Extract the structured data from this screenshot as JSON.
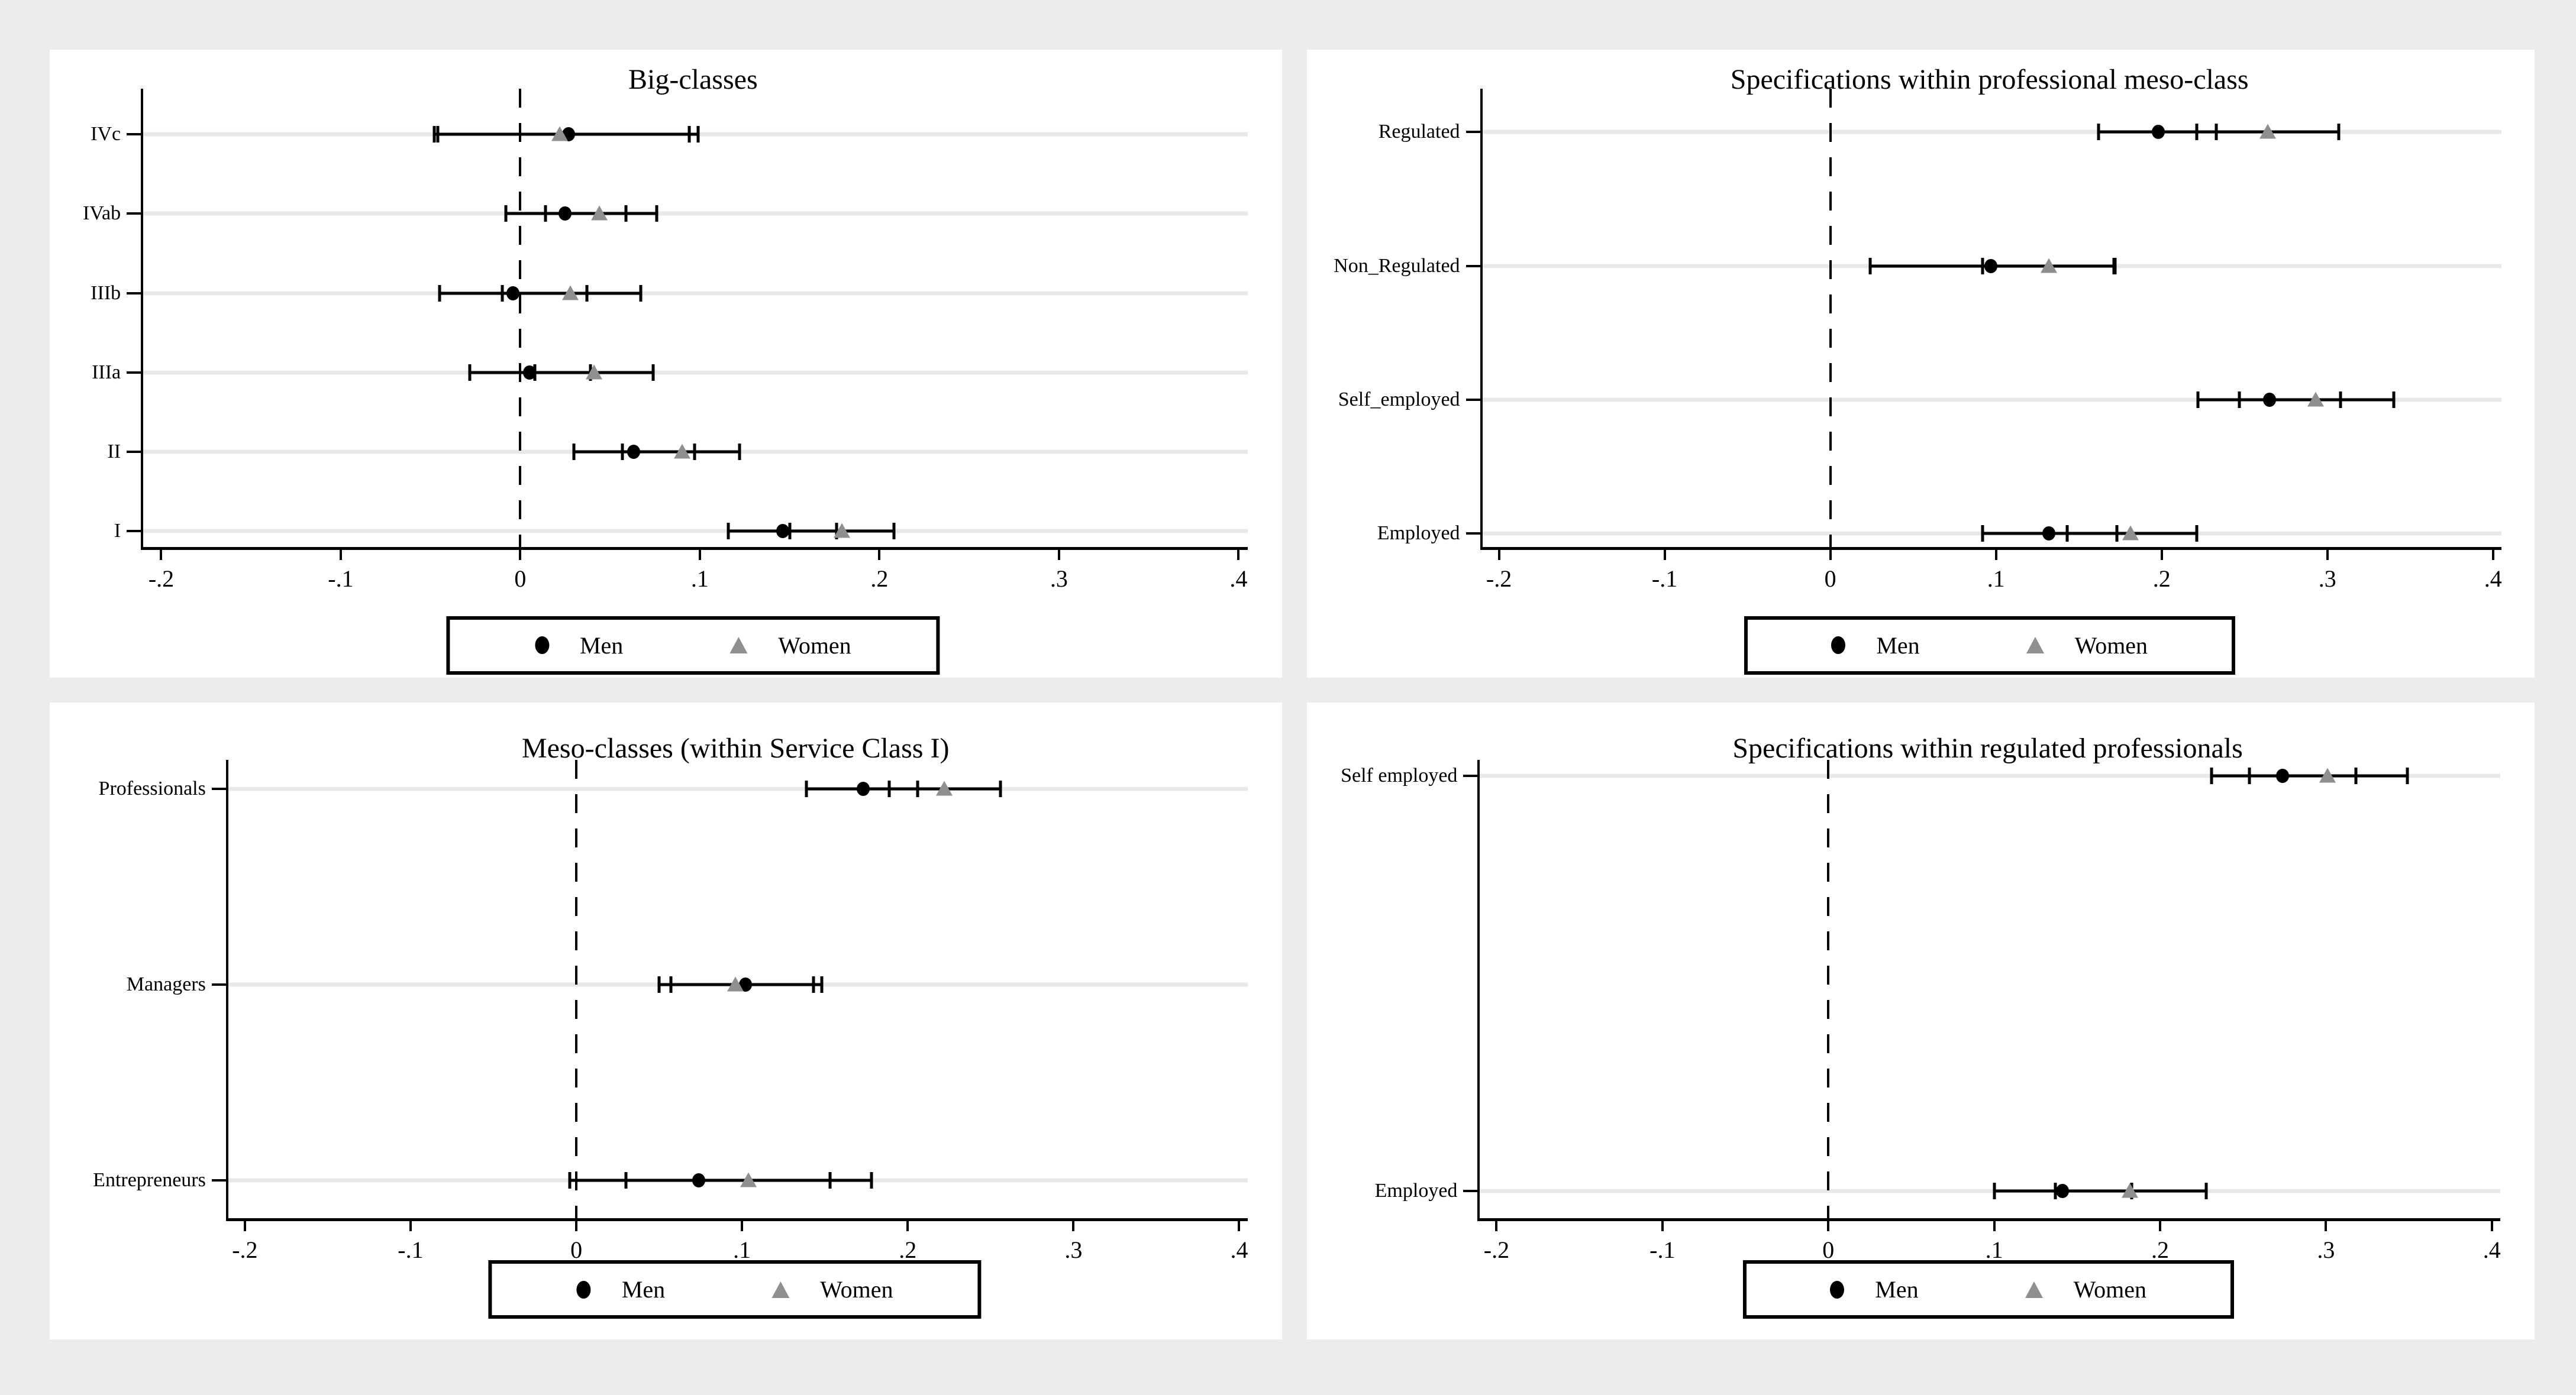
{
  "page": {
    "background": "#ececec",
    "panel_background": "#ffffff"
  },
  "colors": {
    "men": "#000000",
    "women": "#8f8f8f",
    "axis": "#000000",
    "grid": "#e8e8e8"
  },
  "legend": {
    "men": "Men",
    "women": "Women"
  },
  "chart_data": [
    {
      "type": "scatter",
      "subtype": "dot-whisker-coefficient-plot",
      "title": "Big-classes",
      "xlabel": "",
      "ylabel": "",
      "xlim": [
        -0.21,
        0.405
      ],
      "xticks": [
        -0.2,
        -0.1,
        0,
        0.1,
        0.2,
        0.3,
        0.4
      ],
      "xtick_labels": [
        "-.2",
        "-.1",
        "0",
        ".1",
        ".2",
        ".3",
        ".4"
      ],
      "zero_line": 0,
      "grid": true,
      "legend_position": "bottom-center",
      "layout": {
        "gutter": 0.074,
        "row_margin_top": 0.1,
        "row_margin_bottom": 0.035
      },
      "categories": [
        "IVc",
        "IVab",
        "IIIb",
        "IIIa",
        "II",
        "I"
      ],
      "series": [
        {
          "name": "Men",
          "marker": "circle",
          "color": "#000000",
          "points": [
            {
              "est": 0.027,
              "lo": -0.046,
              "hi": 0.099
            },
            {
              "est": 0.025,
              "lo": -0.008,
              "hi": 0.059
            },
            {
              "est": -0.004,
              "lo": -0.045,
              "hi": 0.037
            },
            {
              "est": 0.005,
              "lo": -0.028,
              "hi": 0.039
            },
            {
              "est": 0.063,
              "lo": 0.03,
              "hi": 0.097
            },
            {
              "est": 0.146,
              "lo": 0.116,
              "hi": 0.176
            }
          ]
        },
        {
          "name": "Women",
          "marker": "triangle",
          "color": "#8f8f8f",
          "points": [
            {
              "est": 0.022,
              "lo": -0.048,
              "hi": 0.094
            },
            {
              "est": 0.044,
              "lo": 0.014,
              "hi": 0.076
            },
            {
              "est": 0.028,
              "lo": -0.01,
              "hi": 0.067
            },
            {
              "est": 0.041,
              "lo": 0.008,
              "hi": 0.074
            },
            {
              "est": 0.09,
              "lo": 0.057,
              "hi": 0.122
            },
            {
              "est": 0.179,
              "lo": 0.15,
              "hi": 0.208
            }
          ]
        }
      ]
    },
    {
      "type": "scatter",
      "subtype": "dot-whisker-coefficient-plot",
      "title": "Specifications within professional meso-class",
      "xlabel": "",
      "ylabel": "",
      "xlim": [
        -0.21,
        0.405
      ],
      "xticks": [
        -0.2,
        -0.1,
        0,
        0.1,
        0.2,
        0.3,
        0.4
      ],
      "xtick_labels": [
        "-.2",
        "-.1",
        "0",
        ".1",
        ".2",
        ".3",
        ".4"
      ],
      "zero_line": 0,
      "grid": true,
      "legend_position": "bottom-center",
      "layout": {
        "gutter": 0.141,
        "row_margin_top": 0.095,
        "row_margin_bottom": 0.03
      },
      "categories": [
        "Regulated",
        "Non_Regulated",
        "Self_employed",
        "Employed"
      ],
      "series": [
        {
          "name": "Men",
          "marker": "circle",
          "color": "#000000",
          "points": [
            {
              "est": 0.198,
              "lo": 0.162,
              "hi": 0.233
            },
            {
              "est": 0.097,
              "lo": 0.024,
              "hi": 0.171
            },
            {
              "est": 0.265,
              "lo": 0.222,
              "hi": 0.308
            },
            {
              "est": 0.132,
              "lo": 0.092,
              "hi": 0.173
            }
          ]
        },
        {
          "name": "Women",
          "marker": "triangle",
          "color": "#8f8f8f",
          "points": [
            {
              "est": 0.264,
              "lo": 0.221,
              "hi": 0.307
            },
            {
              "est": 0.132,
              "lo": 0.092,
              "hi": 0.172
            },
            {
              "est": 0.293,
              "lo": 0.247,
              "hi": 0.34
            },
            {
              "est": 0.181,
              "lo": 0.143,
              "hi": 0.221
            }
          ]
        }
      ]
    },
    {
      "type": "scatter",
      "subtype": "dot-whisker-coefficient-plot",
      "title": "Meso-classes (within Service Class I)",
      "xlabel": "",
      "ylabel": "",
      "xlim": [
        -0.21,
        0.405
      ],
      "xticks": [
        -0.2,
        -0.1,
        0,
        0.1,
        0.2,
        0.3,
        0.4
      ],
      "xtick_labels": [
        "-.2",
        "-.1",
        "0",
        ".1",
        ".2",
        ".3",
        ".4"
      ],
      "zero_line": 0,
      "grid": true,
      "legend_position": "bottom-center",
      "layout": {
        "gutter": 0.143,
        "row_margin_top": 0.063,
        "row_margin_bottom": 0.083
      },
      "categories": [
        "Professionals",
        "Managers",
        "Entrepreneurs"
      ],
      "series": [
        {
          "name": "Men",
          "marker": "circle",
          "color": "#000000",
          "points": [
            {
              "est": 0.173,
              "lo": 0.139,
              "hi": 0.206
            },
            {
              "est": 0.102,
              "lo": 0.057,
              "hi": 0.148
            },
            {
              "est": 0.074,
              "lo": -0.004,
              "hi": 0.153
            }
          ]
        },
        {
          "name": "Women",
          "marker": "triangle",
          "color": "#8f8f8f",
          "points": [
            {
              "est": 0.222,
              "lo": 0.189,
              "hi": 0.256
            },
            {
              "est": 0.096,
              "lo": 0.05,
              "hi": 0.143
            },
            {
              "est": 0.104,
              "lo": 0.03,
              "hi": 0.178
            }
          ]
        }
      ]
    },
    {
      "type": "scatter",
      "subtype": "dot-whisker-coefficient-plot",
      "title": "Specifications within regulated professionals",
      "xlabel": "",
      "ylabel": "",
      "xlim": [
        -0.21,
        0.405
      ],
      "xticks": [
        -0.2,
        -0.1,
        0,
        0.1,
        0.2,
        0.3,
        0.4
      ],
      "xtick_labels": [
        "-.2",
        "-.1",
        "0",
        ".1",
        ".2",
        ".3",
        ".4"
      ],
      "zero_line": 0,
      "grid": true,
      "legend_position": "bottom-center",
      "layout": {
        "gutter": 0.139,
        "row_margin_top": 0.035,
        "row_margin_bottom": 0.06
      },
      "categories": [
        "Self employed",
        "Employed"
      ],
      "series": [
        {
          "name": "Men",
          "marker": "circle",
          "color": "#000000",
          "points": [
            {
              "est": 0.274,
              "lo": 0.231,
              "hi": 0.318
            },
            {
              "est": 0.141,
              "lo": 0.1,
              "hi": 0.183
            }
          ]
        },
        {
          "name": "Women",
          "marker": "triangle",
          "color": "#8f8f8f",
          "points": [
            {
              "est": 0.301,
              "lo": 0.254,
              "hi": 0.349
            },
            {
              "est": 0.182,
              "lo": 0.137,
              "hi": 0.228
            }
          ]
        }
      ]
    }
  ]
}
